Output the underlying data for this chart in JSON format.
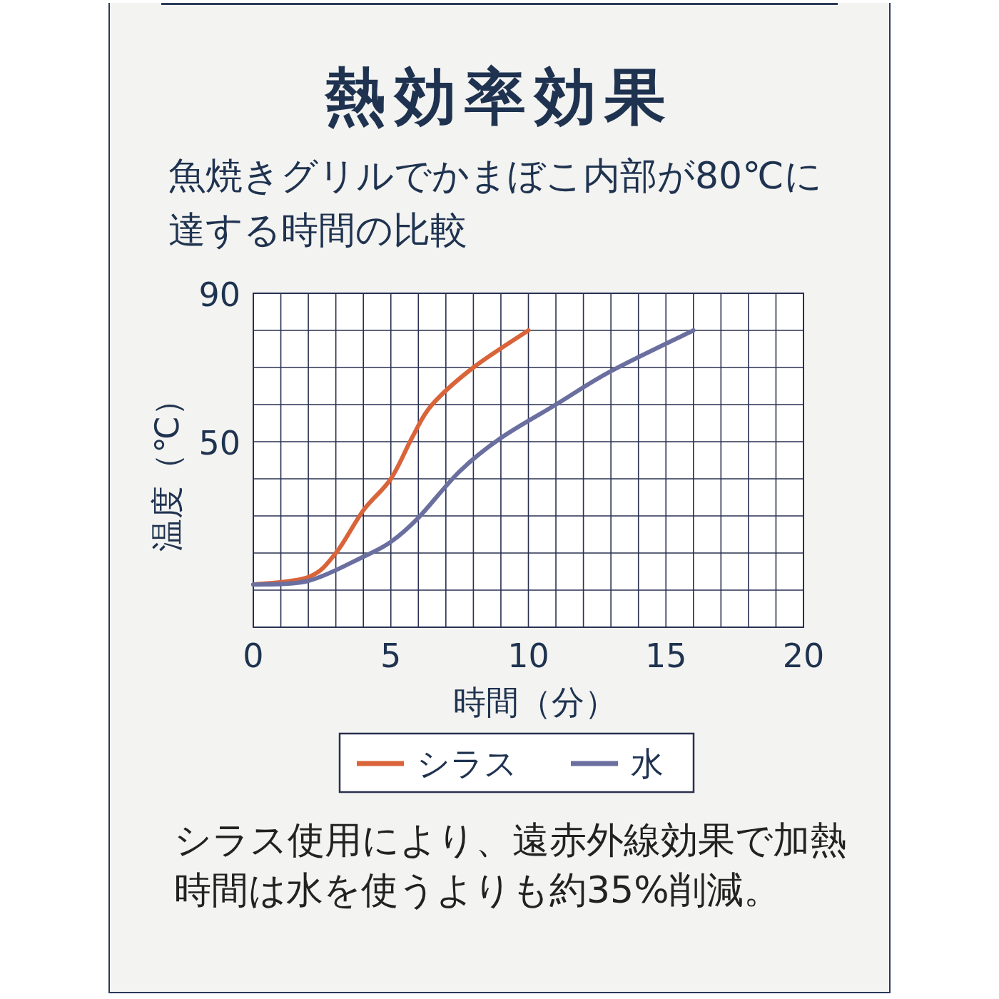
{
  "chart_data": {
    "type": "line",
    "title": "熱効率効果",
    "subtitle": "魚焼きグリルでかまぼこ内部が80℃に達する時間の比較",
    "xlabel": "時間（分）",
    "ylabel": "温度（℃）",
    "xlim": [
      0,
      20
    ],
    "ylim": [
      0,
      90
    ],
    "xticks": [
      0,
      {
        "value": 1,
        "label": null
      },
      {
        "value": 2,
        "label": null
      },
      {
        "value": 3,
        "label": null
      },
      {
        "value": 4,
        "label": null
      },
      5,
      {
        "value": 6,
        "label": null
      },
      {
        "value": 7,
        "label": null
      },
      {
        "value": 8,
        "label": null
      },
      {
        "value": 9,
        "label": null
      },
      10,
      {
        "value": 11,
        "label": null
      },
      {
        "value": 12,
        "label": null
      },
      {
        "value": 13,
        "label": null
      },
      {
        "value": 14,
        "label": null
      },
      15,
      {
        "value": 16,
        "label": null
      },
      {
        "value": 17,
        "label": null
      },
      {
        "value": 18,
        "label": null
      },
      {
        "value": 19,
        "label": null
      },
      20
    ],
    "yticks": [
      {
        "value": 0,
        "label": null
      },
      {
        "value": 10,
        "label": null
      },
      {
        "value": 20,
        "label": null
      },
      {
        "value": 30,
        "label": null
      },
      {
        "value": 40,
        "label": null
      },
      50,
      {
        "value": 60,
        "label": null
      },
      {
        "value": 70,
        "label": null
      },
      {
        "value": 80,
        "label": null
      },
      90
    ],
    "grid": true,
    "legend": "bottom",
    "line_style": "solid",
    "series": [
      {
        "name": "シラス",
        "color": "#d9643a",
        "x": [
          0,
          2,
          3,
          4,
          5,
          5.8,
          6.5,
          8,
          10
        ],
        "values": [
          11.5,
          13.5,
          20,
          31.5,
          40,
          51.5,
          60,
          70,
          80
        ]
      },
      {
        "name": "水",
        "color": "#6a6fa0",
        "x": [
          0,
          2,
          4,
          5,
          6,
          7.5,
          9,
          11,
          13,
          16
        ],
        "values": [
          11.5,
          12.5,
          19,
          23,
          29.5,
          42,
          51,
          60,
          69,
          80
        ]
      }
    ],
    "annotations": [
      "シラス使用により、遠赤外線効果で加熱時間は水を使うよりも約35%削減。"
    ]
  }
}
